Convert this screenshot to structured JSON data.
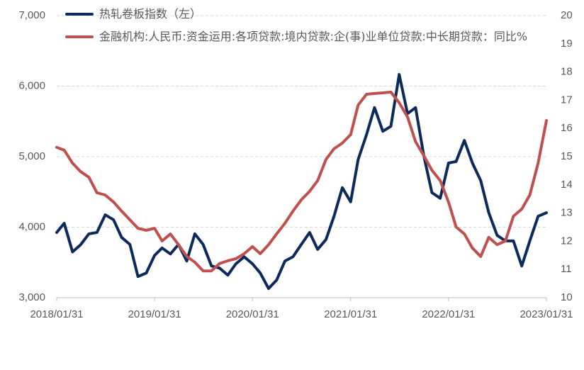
{
  "chart_data": {
    "type": "line",
    "x": [
      "2018/01/31",
      "2018/02/28",
      "2018/03/31",
      "2018/04/30",
      "2018/05/31",
      "2018/06/30",
      "2018/07/31",
      "2018/08/31",
      "2018/09/30",
      "2018/10/31",
      "2018/11/30",
      "2018/12/31",
      "2019/01/31",
      "2019/02/28",
      "2019/03/31",
      "2019/04/30",
      "2019/05/31",
      "2019/06/30",
      "2019/07/31",
      "2019/08/31",
      "2019/09/30",
      "2019/10/31",
      "2019/11/30",
      "2019/12/31",
      "2020/01/31",
      "2020/02/29",
      "2020/03/31",
      "2020/04/30",
      "2020/05/31",
      "2020/06/30",
      "2020/07/31",
      "2020/08/31",
      "2020/09/30",
      "2020/10/31",
      "2020/11/30",
      "2020/12/31",
      "2021/01/31",
      "2021/02/28",
      "2021/03/31",
      "2021/04/30",
      "2021/05/31",
      "2021/06/30",
      "2021/07/31",
      "2021/08/31",
      "2021/09/30",
      "2021/10/31",
      "2021/11/30",
      "2021/12/31",
      "2022/01/31",
      "2022/02/28",
      "2022/03/31",
      "2022/04/30",
      "2022/05/31",
      "2022/06/30",
      "2022/07/31",
      "2022/08/31",
      "2022/09/30",
      "2022/10/31",
      "2022/11/30",
      "2022/12/31",
      "2023/01/31"
    ],
    "xlim": [
      "2018/01/31",
      "2023/01/31"
    ],
    "xticks": [
      "2018/01/31",
      "2019/01/31",
      "2020/01/31",
      "2021/01/31",
      "2022/01/31",
      "2023/01/31"
    ],
    "ylim": [
      3000,
      7000
    ],
    "yticks": [
      {
        "value": 3000,
        "label": "3,000"
      },
      {
        "value": 4000,
        "label": "4,000"
      },
      {
        "value": 5000,
        "label": "5,000"
      },
      {
        "value": 6000,
        "label": "6,000"
      },
      {
        "value": 7000,
        "label": "7,000"
      }
    ],
    "y2lim": [
      10,
      20
    ],
    "y2ticks": [
      10,
      11,
      12,
      13,
      14,
      15,
      16,
      17,
      18,
      19,
      20
    ],
    "grid": true,
    "series": [
      {
        "name": "热轧卷板指数（左）",
        "color": "#0d2a5c",
        "values": [
          3925,
          4055,
          3650,
          3750,
          3905,
          3925,
          4175,
          4105,
          3855,
          3755,
          3300,
          3350,
          3600,
          3705,
          3620,
          3755,
          3520,
          3905,
          3755,
          3450,
          3420,
          3320,
          3480,
          3580,
          3480,
          3350,
          3130,
          3250,
          3520,
          3580,
          3755,
          3925,
          3685,
          3825,
          4155,
          4560,
          4360,
          4960,
          5310,
          5695,
          5360,
          5430,
          6165,
          5610,
          5695,
          5010,
          4490,
          4410,
          4910,
          4930,
          5230,
          4910,
          4660,
          4205,
          3885,
          3805,
          3805,
          3450,
          3805,
          4155,
          4205
        ]
      },
      {
        "name": "金融机构:人民币:资金运用:各项贷款:境内贷款:企(事)业单位贷款:中长期贷款：同比%",
        "color": "#c0504d",
        "axis": "y2",
        "values": [
          15.33,
          15.23,
          14.77,
          14.47,
          14.27,
          13.72,
          13.64,
          13.39,
          13.07,
          12.76,
          12.46,
          12.39,
          12.46,
          12.01,
          12.26,
          11.88,
          11.46,
          11.26,
          10.95,
          10.95,
          11.21,
          11.31,
          11.38,
          11.56,
          11.81,
          11.56,
          11.88,
          12.26,
          12.64,
          13.07,
          13.47,
          13.77,
          14.15,
          14.9,
          15.28,
          15.48,
          15.78,
          16.83,
          17.21,
          17.24,
          17.26,
          17.29,
          16.91,
          16.41,
          15.53,
          15.03,
          14.52,
          14.15,
          13.39,
          12.51,
          12.26,
          11.76,
          11.46,
          12.14,
          11.88,
          12.01,
          12.89,
          13.14,
          13.64,
          14.77,
          16.28
        ]
      }
    ]
  }
}
